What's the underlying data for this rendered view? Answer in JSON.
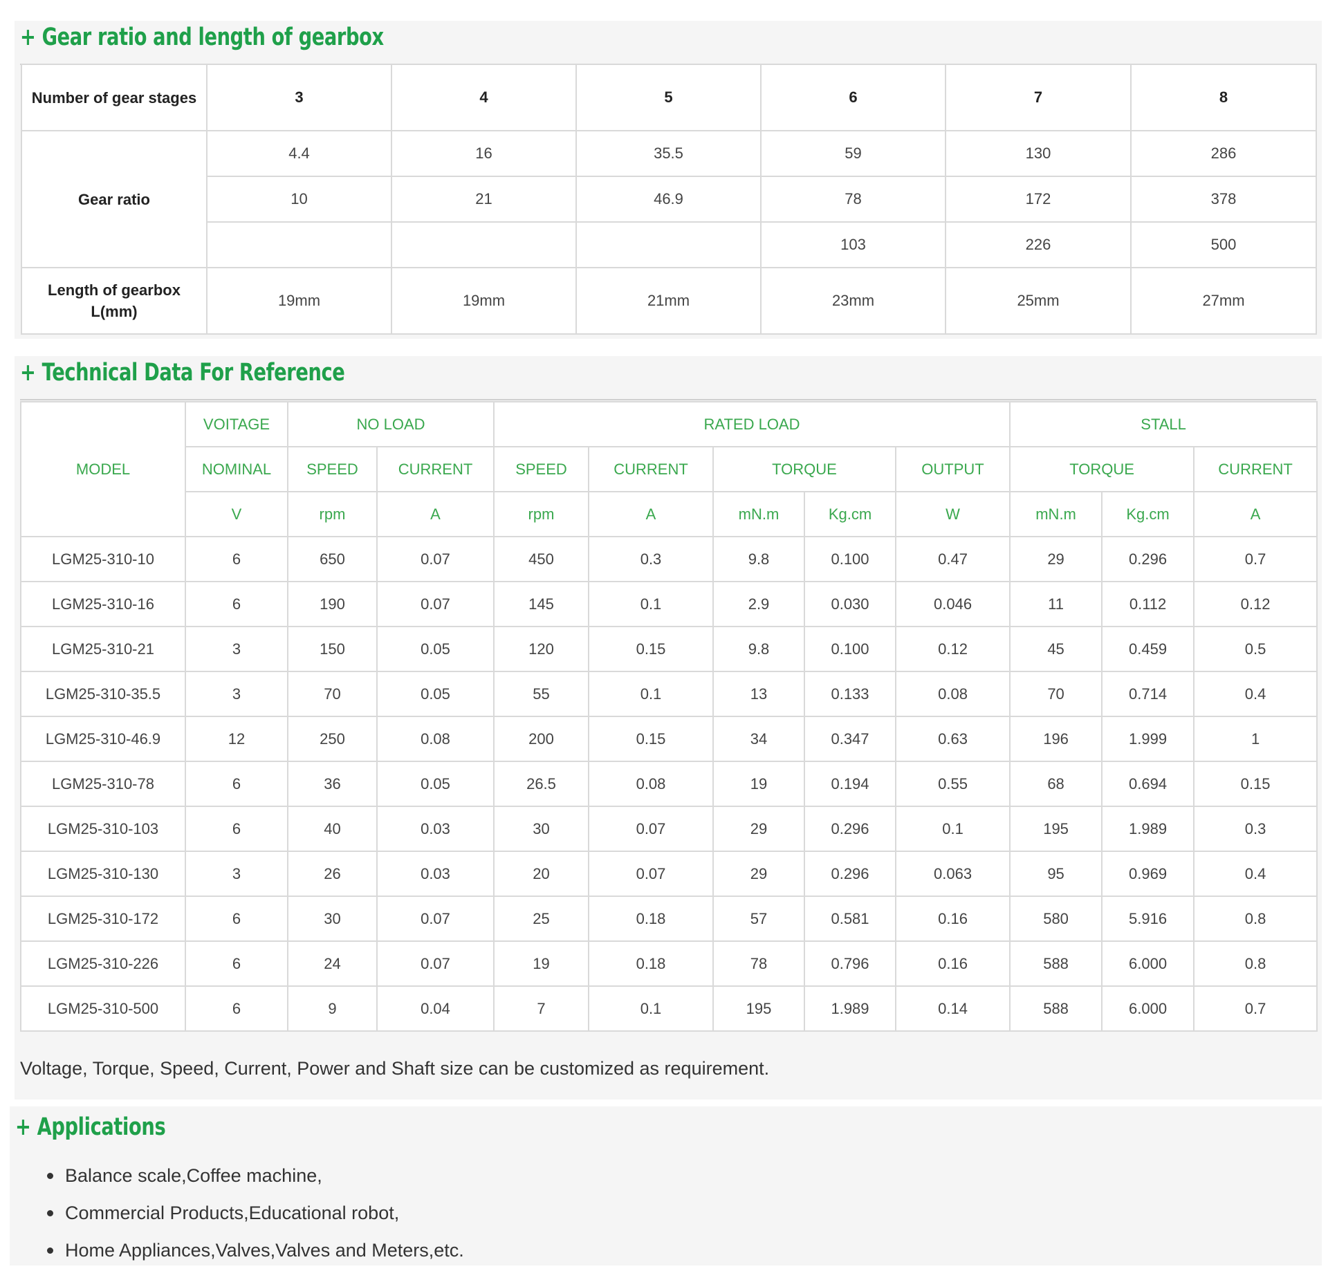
{
  "gearbox": {
    "title": "+ Gear ratio and length of gearbox",
    "stages_label": "Number of gear stages",
    "stages": [
      "3",
      "4",
      "5",
      "6",
      "7",
      "8"
    ],
    "ratio_label": "Gear ratio",
    "ratio_rows": [
      [
        "4.4",
        "16",
        "35.5",
        "59",
        "130",
        "286"
      ],
      [
        "10",
        "21",
        "46.9",
        "78",
        "172",
        "378"
      ],
      [
        "",
        "",
        "",
        "103",
        "226",
        "500"
      ]
    ],
    "length_label": "Length of gearbox L(mm)",
    "lengths": [
      "19mm",
      "19mm",
      "21mm",
      "23mm",
      "25mm",
      "27mm"
    ]
  },
  "technical": {
    "title": "+ Technical Data For Reference",
    "headers": {
      "model": "MODEL",
      "voltage": "VOITAGE",
      "no_load": "NO LOAD",
      "rated_load": "RATED LOAD",
      "stall": "STALL",
      "nominal": "NOMINAL",
      "nl_speed": "SPEED",
      "nl_current": "CURRENT",
      "rl_speed": "SPEED",
      "rl_current": "CURRENT",
      "rl_torque": "TORQUE",
      "rl_output": "OUTPUT",
      "st_torque": "TORQUE",
      "st_current": "CURRENT"
    },
    "units": [
      "V",
      "rpm",
      "A",
      "rpm",
      "A",
      "mN.m",
      "Kg.cm",
      "W",
      "mN.m",
      "Kg.cm",
      "A"
    ],
    "rows": [
      [
        "LGM25-310-10",
        "6",
        "650",
        "0.07",
        "450",
        "0.3",
        "9.8",
        "0.100",
        "0.47",
        "29",
        "0.296",
        "0.7"
      ],
      [
        "LGM25-310-16",
        "6",
        "190",
        "0.07",
        "145",
        "0.1",
        "2.9",
        "0.030",
        "0.046",
        "11",
        "0.112",
        "0.12"
      ],
      [
        "LGM25-310-21",
        "3",
        "150",
        "0.05",
        "120",
        "0.15",
        "9.8",
        "0.100",
        "0.12",
        "45",
        "0.459",
        "0.5"
      ],
      [
        "LGM25-310-35.5",
        "3",
        "70",
        "0.05",
        "55",
        "0.1",
        "13",
        "0.133",
        "0.08",
        "70",
        "0.714",
        "0.4"
      ],
      [
        "LGM25-310-46.9",
        "12",
        "250",
        "0.08",
        "200",
        "0.15",
        "34",
        "0.347",
        "0.63",
        "196",
        "1.999",
        "1"
      ],
      [
        "LGM25-310-78",
        "6",
        "36",
        "0.05",
        "26.5",
        "0.08",
        "19",
        "0.194",
        "0.55",
        "68",
        "0.694",
        "0.15"
      ],
      [
        "LGM25-310-103",
        "6",
        "40",
        "0.03",
        "30",
        "0.07",
        "29",
        "0.296",
        "0.1",
        "195",
        "1.989",
        "0.3"
      ],
      [
        "LGM25-310-130",
        "3",
        "26",
        "0.03",
        "20",
        "0.07",
        "29",
        "0.296",
        "0.063",
        "95",
        "0.969",
        "0.4"
      ],
      [
        "LGM25-310-172",
        "6",
        "30",
        "0.07",
        "25",
        "0.18",
        "57",
        "0.581",
        "0.16",
        "580",
        "5.916",
        "0.8"
      ],
      [
        "LGM25-310-226",
        "6",
        "24",
        "0.07",
        "19",
        "0.18",
        "78",
        "0.796",
        "0.16",
        "588",
        "6.000",
        "0.8"
      ],
      [
        "LGM25-310-500",
        "6",
        "9",
        "0.04",
        "7",
        "0.1",
        "195",
        "1.989",
        "0.14",
        "588",
        "6.000",
        "0.7"
      ]
    ],
    "note": "Voltage, Torque, Speed, Current, Power and Shaft size can be customized as requirement."
  },
  "applications": {
    "title": "+ Applications",
    "items": [
      "Balance scale,Coffee machine,",
      "Commercial Products,Educational robot,",
      "Home Appliances,Valves,Valves and Meters,etc."
    ]
  },
  "colors": {
    "accent_green": "#1fa04a",
    "header_green": "#3aa84e",
    "border_gray": "#d9d9d9",
    "panel_bg": "#f5f5f5"
  }
}
